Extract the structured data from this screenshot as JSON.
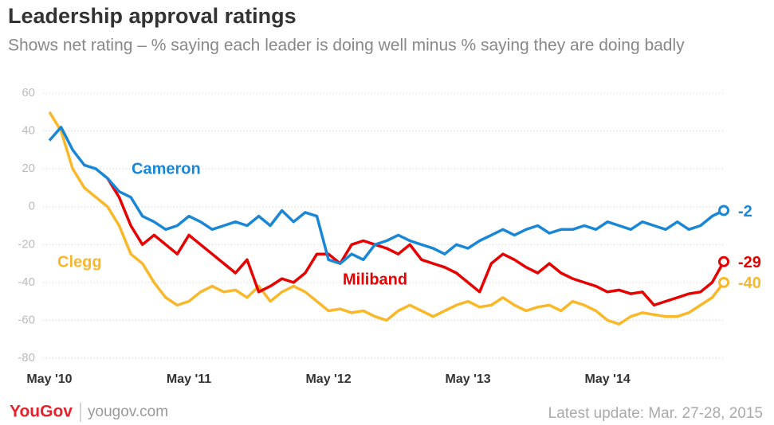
{
  "chart_data": {
    "type": "line",
    "title": "Leadership approval ratings",
    "subtitle": "Shows net rating – % saying each leader is doing well minus % saying they are doing badly",
    "categories": [
      "May '10",
      null,
      null,
      null,
      null,
      null,
      null,
      null,
      null,
      null,
      null,
      null,
      "May '11",
      null,
      null,
      null,
      null,
      null,
      null,
      null,
      null,
      null,
      null,
      null,
      "May '12",
      null,
      null,
      null,
      null,
      null,
      null,
      null,
      null,
      null,
      null,
      null,
      "May '13",
      null,
      null,
      null,
      null,
      null,
      null,
      null,
      null,
      null,
      null,
      null,
      "May '14",
      null,
      null,
      null,
      null,
      null,
      null,
      null,
      null,
      null,
      null
    ],
    "series": [
      {
        "name": "Cameron",
        "color": "#1a87d6",
        "values": [
          35,
          42,
          30,
          22,
          20,
          15,
          8,
          5,
          -5,
          -8,
          -12,
          -10,
          -5,
          -8,
          -12,
          -10,
          -8,
          -10,
          -5,
          -10,
          -2,
          -8,
          -3,
          -5,
          -28,
          -30,
          -25,
          -28,
          -20,
          -18,
          -15,
          -18,
          -20,
          -22,
          -25,
          -20,
          -22,
          -18,
          -15,
          -12,
          -15,
          -12,
          -10,
          -14,
          -12,
          -12,
          -10,
          -12,
          -8,
          -10,
          -12,
          -8,
          -10,
          -12,
          -8,
          -12,
          -10,
          -5,
          -2
        ]
      },
      {
        "name": "Clegg",
        "color": "#f9b829",
        "values": [
          50,
          40,
          20,
          10,
          5,
          0,
          -10,
          -25,
          -30,
          -40,
          -48,
          -52,
          -50,
          -45,
          -42,
          -45,
          -44,
          -48,
          -42,
          -50,
          -45,
          -42,
          -45,
          -50,
          -55,
          -54,
          -56,
          -55,
          -58,
          -60,
          -55,
          -52,
          -55,
          -58,
          -55,
          -52,
          -50,
          -53,
          -52,
          -48,
          -52,
          -55,
          -53,
          -52,
          -55,
          -50,
          -52,
          -55,
          -60,
          -62,
          -58,
          -56,
          -57,
          -58,
          -58,
          -56,
          -52,
          -48,
          -40
        ]
      },
      {
        "name": "Miliband",
        "color": "#e60000",
        "values": [
          null,
          null,
          null,
          null,
          null,
          15,
          5,
          -10,
          -20,
          -15,
          -20,
          -25,
          -15,
          -20,
          -25,
          -30,
          -35,
          -28,
          -45,
          -42,
          -38,
          -40,
          -35,
          -25,
          -25,
          -30,
          -20,
          -18,
          -20,
          -22,
          -25,
          -20,
          -28,
          -30,
          -32,
          -35,
          -40,
          -45,
          -30,
          -25,
          -28,
          -32,
          -35,
          -30,
          -35,
          -38,
          -40,
          -42,
          -45,
          -44,
          -46,
          -45,
          -52,
          -50,
          -48,
          -46,
          -45,
          -40,
          -29
        ]
      }
    ],
    "ylim": [
      -80,
      60
    ],
    "yticks": [
      60,
      40,
      20,
      0,
      -20,
      -40,
      -60,
      -80
    ],
    "grid": true,
    "brand": "YouGov",
    "website": "yougov.com",
    "update": "Latest update: Mar. 27-28, 2015"
  }
}
